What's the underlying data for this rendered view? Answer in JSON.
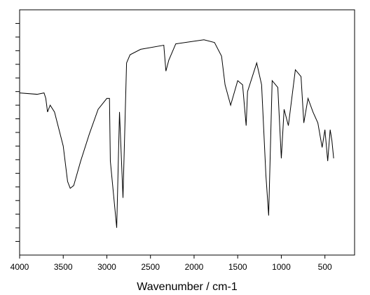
{
  "chart_data": {
    "type": "line",
    "xlabel": "Wavenumber / cm-1",
    "x": [
      4000,
      3800,
      3720,
      3700,
      3680,
      3650,
      3600,
      3500,
      3450,
      3420,
      3380,
      3300,
      3200,
      3100,
      3000,
      2970,
      2960,
      2887,
      2855,
      2815,
      2774,
      2734,
      2613,
      2347,
      2323,
      2290,
      2210,
      1887,
      1766,
      1685,
      1645,
      1581,
      1500,
      1444,
      1403,
      1387,
      1282,
      1226,
      1177,
      1145,
      1105,
      1040,
      1000,
      968,
      919,
      839,
      774,
      742,
      694,
      637,
      581,
      532,
      500,
      468,
      440,
      420,
      400
    ],
    "series": [
      {
        "color": "#000000",
        "values": [
          11.9,
          11.8,
          11.9,
          11.5,
          10.5,
          11.0,
          10.5,
          8.0,
          5.4,
          4.9,
          5.1,
          6.9,
          8.9,
          10.7,
          11.5,
          11.5,
          6.9,
          2.0,
          10.5,
          4.2,
          14.1,
          14.7,
          15.1,
          15.4,
          13.5,
          14.3,
          15.5,
          15.8,
          15.6,
          14.6,
          12.5,
          11.0,
          12.8,
          12.5,
          9.5,
          12.0,
          14.1,
          12.5,
          5.9,
          2.9,
          12.8,
          12.3,
          7.1,
          10.7,
          9.5,
          13.6,
          13.1,
          9.7,
          11.5,
          10.5,
          9.7,
          7.9,
          9.2,
          6.9,
          9.2,
          8.4,
          7.1
        ]
      }
    ],
    "xlim": [
      4000,
      160
    ],
    "xticks": [
      4000,
      3500,
      3000,
      2500,
      2000,
      1500,
      1000,
      500
    ],
    "ylim": [
      0,
      18
    ],
    "yticks": [
      1,
      2,
      3,
      4,
      5,
      6,
      7,
      8,
      9,
      10,
      11,
      12,
      13,
      14,
      15,
      16,
      17
    ]
  }
}
